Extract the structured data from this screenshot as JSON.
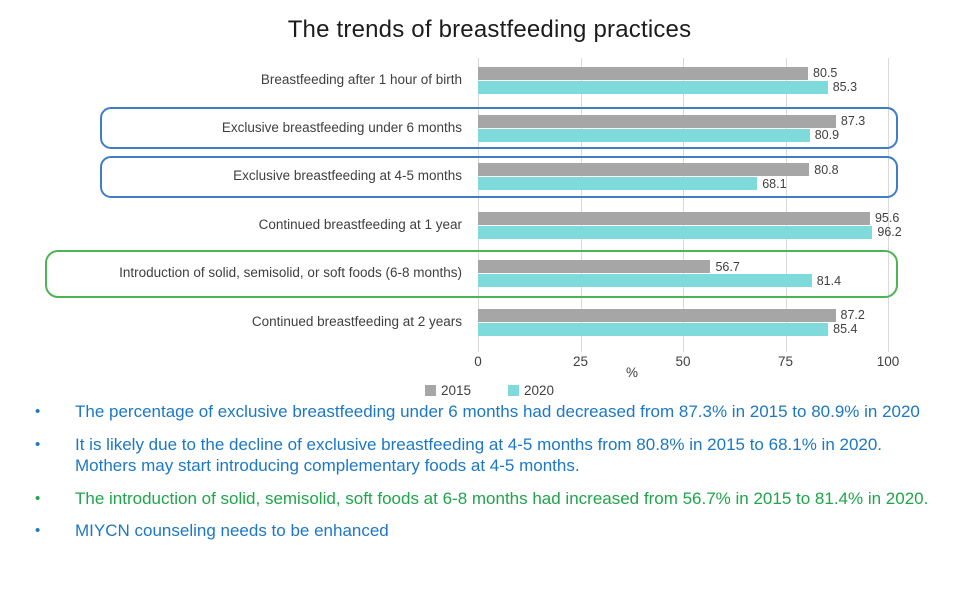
{
  "title": "The trends of breastfeeding practices",
  "chart_data": {
    "type": "bar",
    "orientation": "horizontal",
    "title": "The trends of breastfeeding practices",
    "categories": [
      "Breastfeeding after 1 hour of birth",
      "Exclusive breastfeeding under 6 months",
      "Exclusive breastfeeding at 4-5 months",
      "Continued breastfeeding at 1 year",
      "Introduction of solid, semisolid, or soft foods (6-8 months)",
      "Continued breastfeeding at 2 years"
    ],
    "series": [
      {
        "name": "2015",
        "color": "#a6a6a6",
        "values": [
          80.5,
          87.3,
          80.8,
          95.6,
          56.7,
          87.2
        ]
      },
      {
        "name": "2020",
        "color": "#7edadb",
        "values": [
          85.3,
          80.9,
          68.1,
          96.2,
          81.4,
          85.4
        ]
      }
    ],
    "xlabel": "%",
    "xlim": [
      0,
      100
    ],
    "xticks": [
      0,
      25,
      50,
      75,
      100
    ],
    "grid": "vertical",
    "gridline_color": "#d9d9d9",
    "legend_position": "bottom",
    "highlights": [
      {
        "category_index": 1,
        "color": "#3f7ec6",
        "meaning": "decreased indicator"
      },
      {
        "category_index": 2,
        "color": "#3f7ec6",
        "meaning": "decreased indicator"
      },
      {
        "category_index": 4,
        "color": "#4db456",
        "meaning": "increased indicator"
      }
    ]
  },
  "bullets": [
    {
      "text": "The percentage of exclusive breastfeeding under 6 months had decreased from 87.3% in 2015 to 80.9% in 2020",
      "color": "#1c78c5"
    },
    {
      "text": "It is likely due to the decline of exclusive breastfeeding at 4-5 months from 80.8% in 2015 to 68.1% in 2020. Mothers may start introducing complementary foods at 4-5 months.",
      "color": "#1c78c5"
    },
    {
      "text": "The introduction of solid, semisolid, soft foods at 6-8 months had increased from 56.7% in 2015 to 81.4% in 2020.",
      "color": "#1fa54a"
    },
    {
      "text": "MIYCN counseling needs to be enhanced",
      "color": "#1c78c5"
    }
  ]
}
